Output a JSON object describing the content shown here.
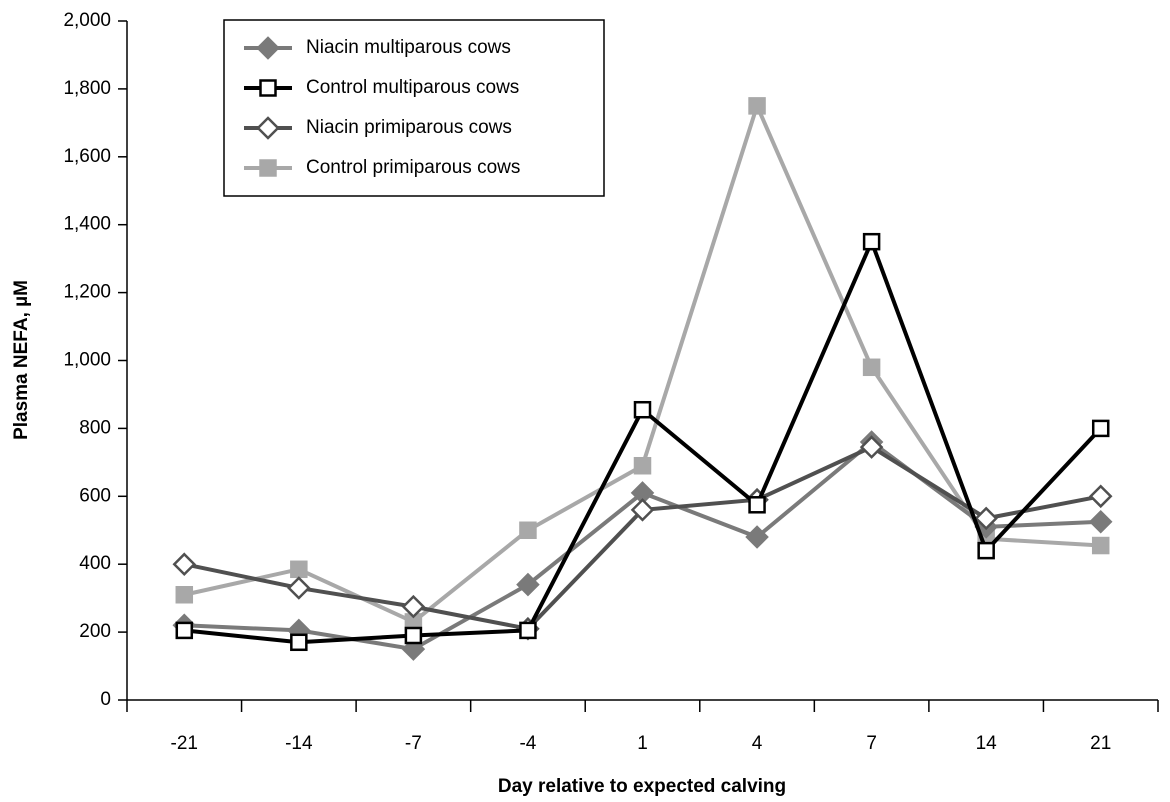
{
  "chart_data": {
    "type": "line",
    "x_label": "Day relative to expected calving",
    "y_label": "Plasma NEFA, µM",
    "categories": [
      "-21",
      "-14",
      "-7",
      "-4",
      "1",
      "4",
      "7",
      "14",
      "21"
    ],
    "ylim": [
      0,
      2000
    ],
    "yticks": [
      0,
      200,
      400,
      600,
      800,
      {
        "value": 1000,
        "label": "1,000"
      },
      {
        "value": 1200,
        "label": "1,200"
      },
      {
        "value": 1400,
        "label": "1,400"
      },
      {
        "value": 1600,
        "label": "1,600"
      },
      {
        "value": 1800,
        "label": "1,800"
      },
      {
        "value": 2000,
        "label": "2,000"
      }
    ],
    "legend": "upper-left",
    "series": [
      {
        "name": "Niacin multiparous cows",
        "color": "#7a7a7a",
        "marker": "diamond",
        "filled": true,
        "values": [
          220,
          205,
          150,
          340,
          610,
          480,
          760,
          510,
          525
        ]
      },
      {
        "name": "Control multiparous cows",
        "color": "#000000",
        "marker": "square",
        "filled": false,
        "values": [
          205,
          170,
          190,
          205,
          855,
          575,
          1350,
          440,
          800
        ]
      },
      {
        "name": "Niacin primiparous cows",
        "color": "#505050",
        "marker": "diamond",
        "filled": false,
        "values": [
          400,
          330,
          275,
          210,
          560,
          590,
          745,
          535,
          600
        ]
      },
      {
        "name": "Control primiparous cows",
        "color": "#a8a8a8",
        "marker": "square",
        "filled": true,
        "values": [
          310,
          385,
          230,
          500,
          690,
          1750,
          980,
          475,
          455
        ]
      }
    ]
  }
}
